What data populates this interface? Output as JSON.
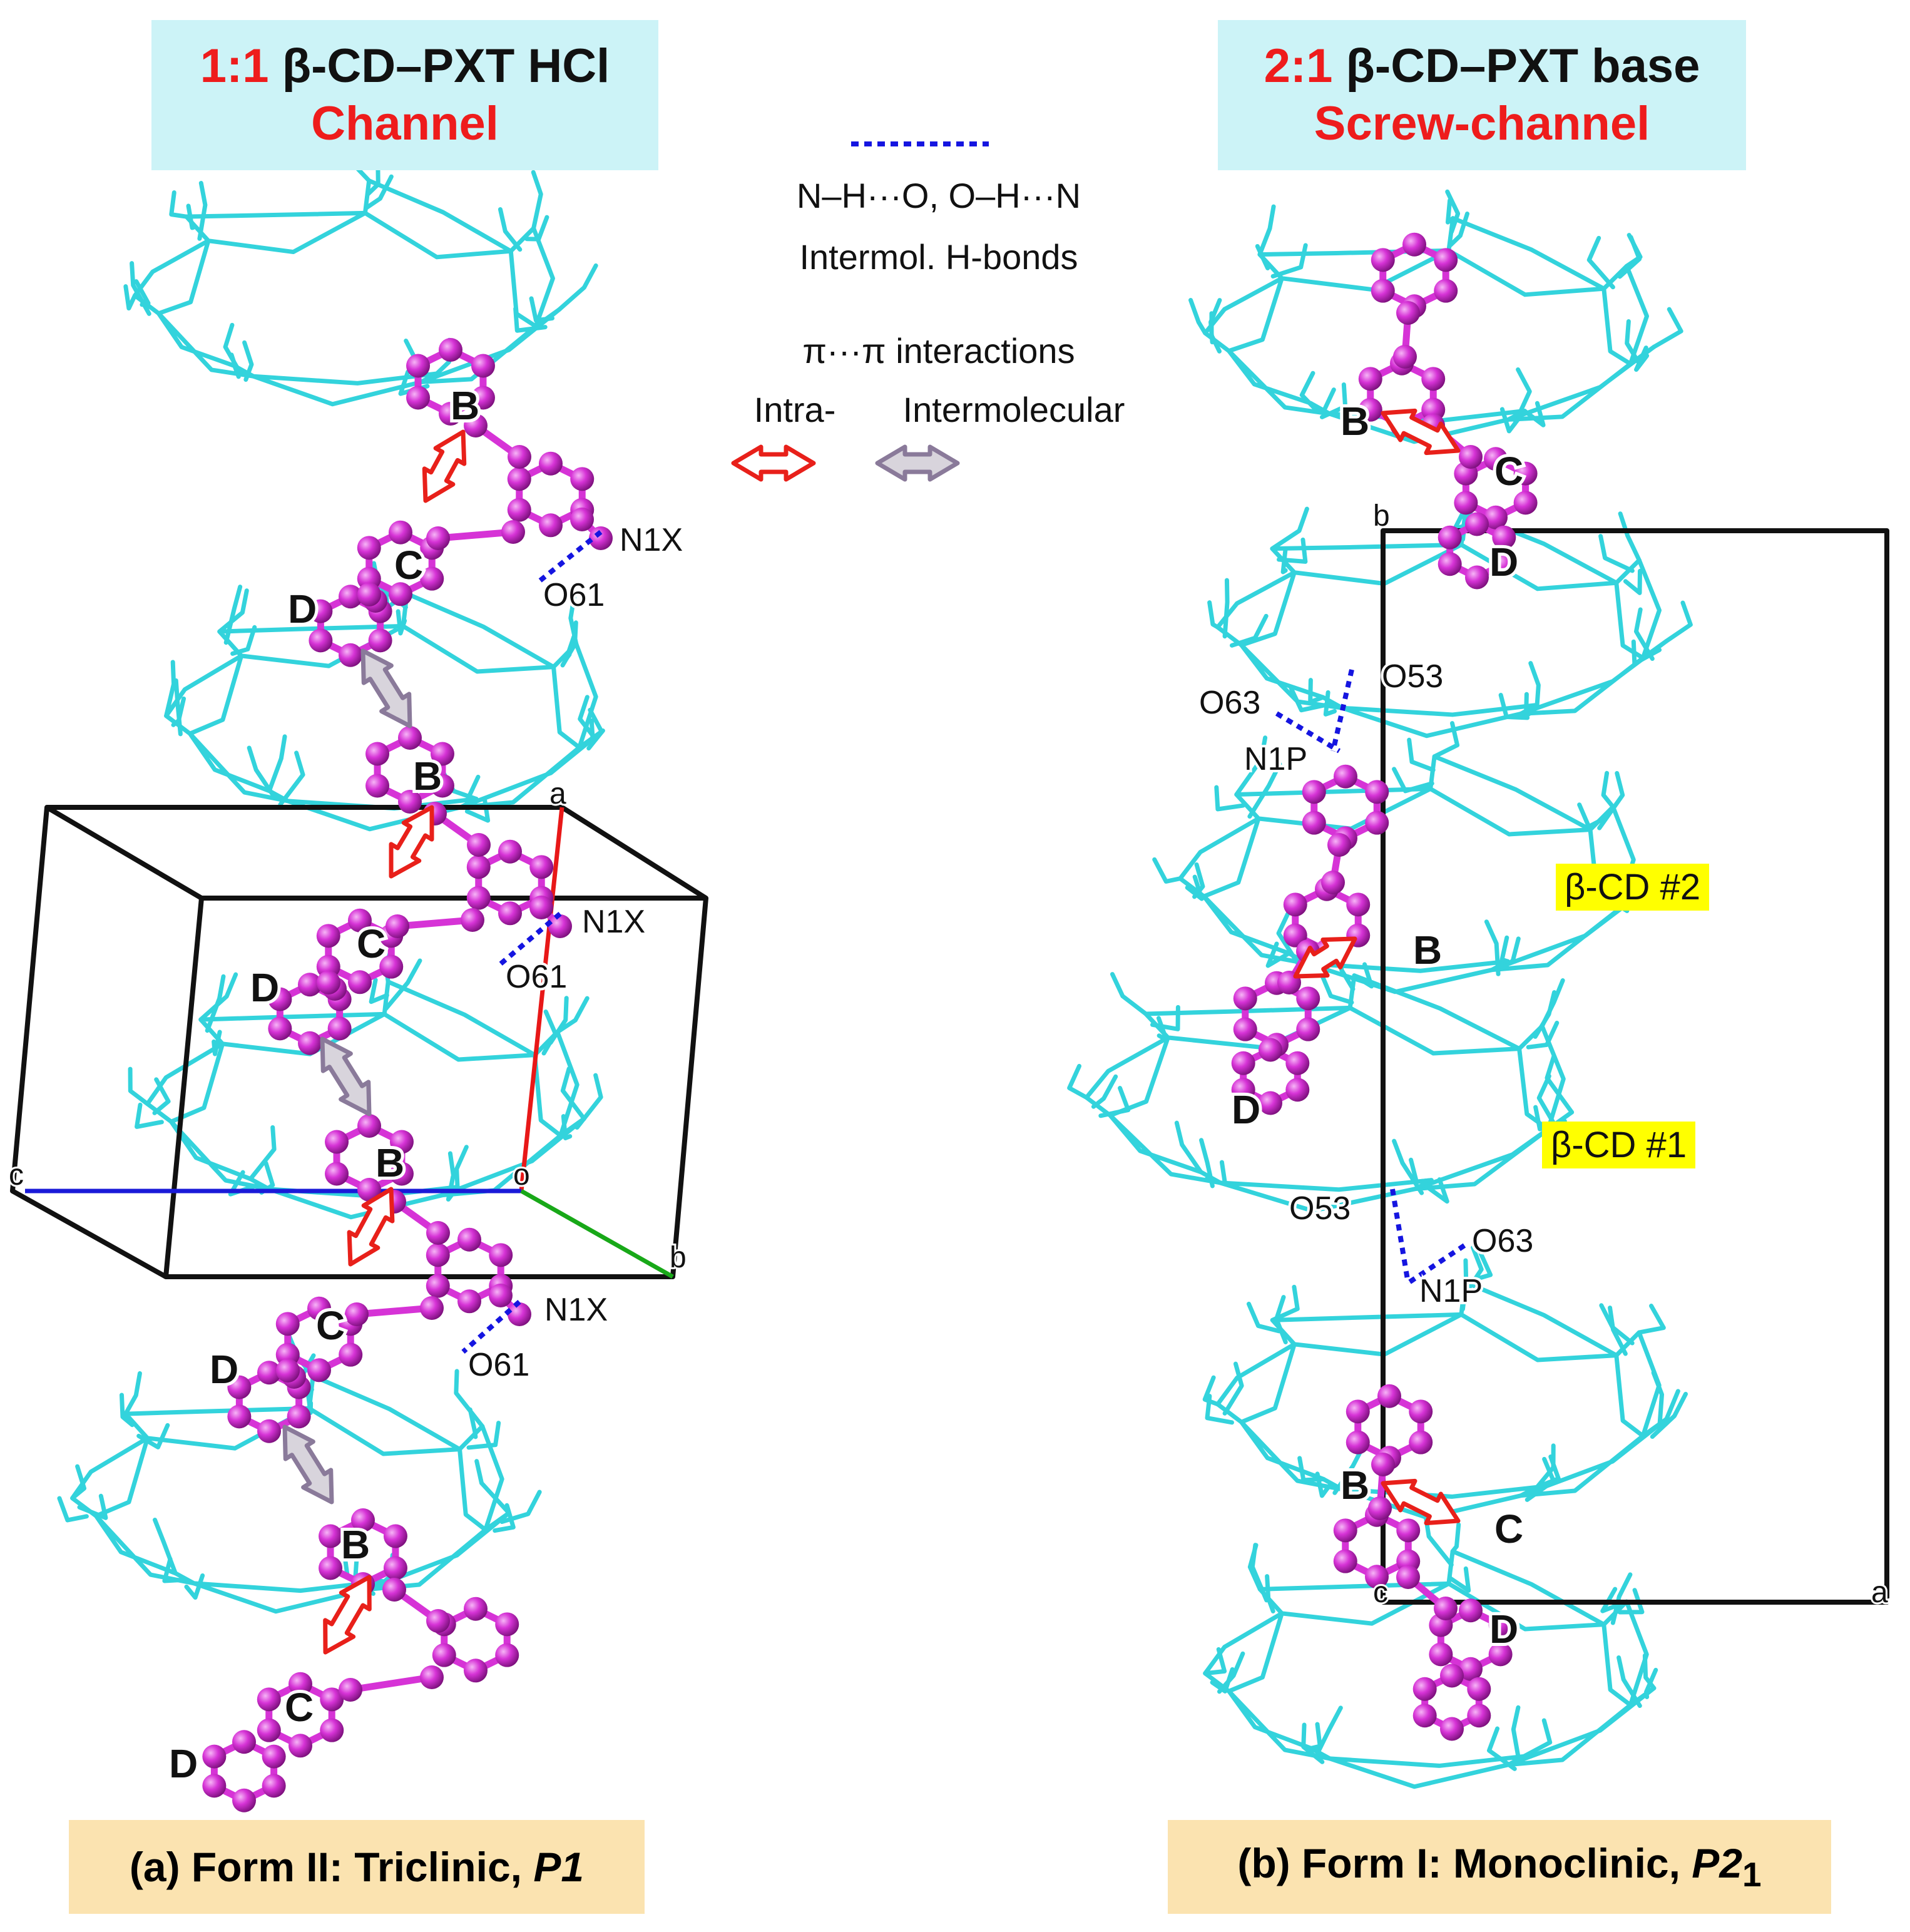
{
  "panel_a": {
    "title_ratio": "1:1",
    "title_name": "β-CD–PXT HCl",
    "title_type": "Channel",
    "caption_prefix": "(a) Form II: Triclinic, ",
    "caption_space_group": "P1",
    "ring_labels": [
      "B",
      "C",
      "D",
      "B",
      "C",
      "D",
      "B",
      "C",
      "D",
      "B",
      "C",
      "D"
    ],
    "atom_labels": [
      "N1X",
      "O61",
      "N1X",
      "O61",
      "N1X",
      "O61"
    ],
    "axis_labels": [
      "a",
      "b",
      "c",
      "o"
    ]
  },
  "panel_b": {
    "title_ratio": "2:1",
    "title_name": "β-CD–PXT base",
    "title_type": "Screw-channel",
    "caption_prefix": "(b) Form I: Monoclinic, ",
    "caption_space_group": "P2",
    "caption_subscript": "1",
    "ring_labels": [
      "B",
      "C",
      "D",
      "B",
      "D",
      "B",
      "C",
      "D"
    ],
    "atom_labels": [
      "O53",
      "O63",
      "N1P",
      "O53",
      "O63",
      "N1P"
    ],
    "axis_labels": [
      "b",
      "c",
      "a"
    ],
    "cd_labels": [
      "β-CD #2",
      "β-CD #1"
    ]
  },
  "legend": {
    "hbond_types": "N–H···O, O–H···N",
    "hbond_label": "Intermol. H-bonds",
    "pi_label": "π···π interactions",
    "intra_label": "Intra-",
    "inter_label": "Intermolecular"
  },
  "colors": {
    "cyclodextrin": "#33d3dc",
    "guest": "#d633d6",
    "hbond": "#1515e0",
    "intra_arrow": "#e8201a",
    "inter_arrow": "#8a7a9a",
    "title_bg": "#ccf3f7",
    "caption_bg": "#fbe3b0",
    "highlight": "#ffff00"
  }
}
